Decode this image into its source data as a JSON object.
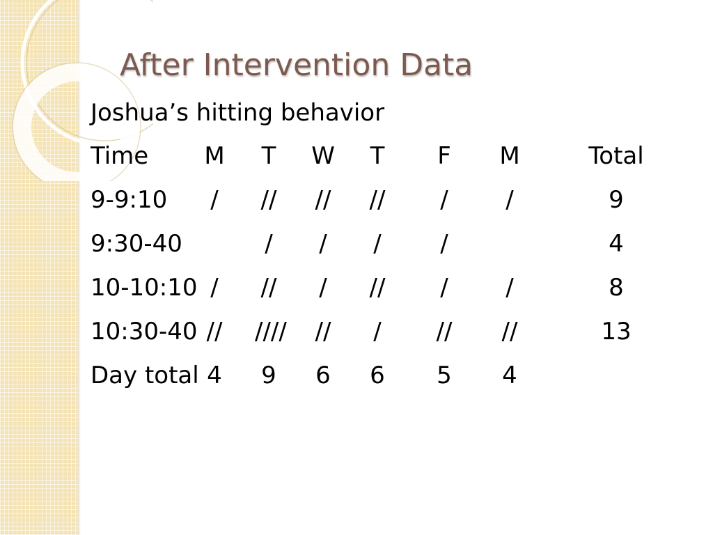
{
  "slide": {
    "title": "After Intervention Data",
    "subtitle": "Joshua’s hitting behavior",
    "colors": {
      "title": "#7d5a4f",
      "side_band": "#f4e3b5",
      "text": "#000000"
    },
    "decoration": "circle-rings-icon"
  },
  "table": {
    "header": [
      "Time",
      "M",
      "T",
      "W",
      "T",
      "F",
      "M",
      "Total"
    ],
    "rows": [
      [
        "9-9:10",
        "/",
        "//",
        "//",
        "//",
        "/",
        "/",
        "9"
      ],
      [
        "9:30-40",
        "",
        "/",
        "/",
        "/",
        "/",
        "",
        "4"
      ],
      [
        "10-10:10",
        "/",
        "//",
        "/",
        "//",
        "/",
        "/",
        "8"
      ],
      [
        "10:30-40",
        "//",
        "////",
        "//",
        "/",
        "//",
        "//",
        "13"
      ],
      [
        "Day total",
        "4",
        "9",
        "6",
        "6",
        "5",
        "4",
        ""
      ]
    ]
  }
}
